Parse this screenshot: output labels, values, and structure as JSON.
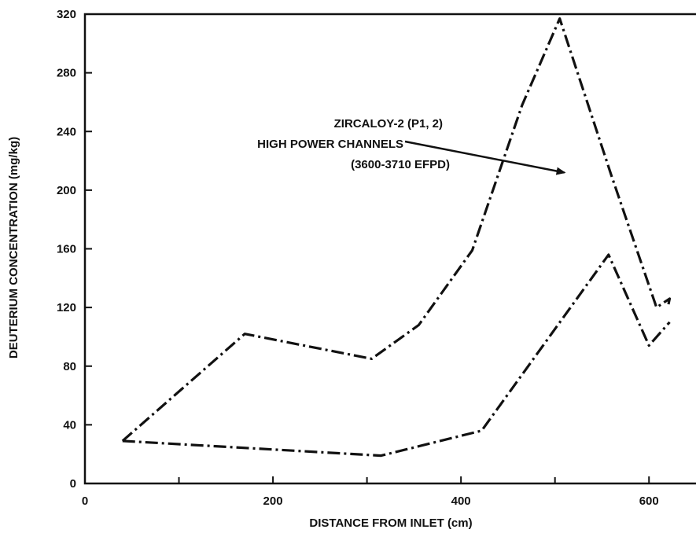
{
  "chart_data": {
    "type": "line",
    "xlabel": "DISTANCE FROM INLET (cm)",
    "ylabel": "DEUTERIUM CONCENTRATION (mg/kg)",
    "xlim": [
      0,
      650
    ],
    "ylim": [
      0,
      320
    ],
    "x_ticks": [
      0,
      200,
      400,
      600
    ],
    "y_ticks": [
      0,
      40,
      80,
      120,
      160,
      200,
      240,
      280,
      320
    ],
    "grid": false,
    "annotation": {
      "lines": [
        "ZIRCALOY-2 (P1, 2)",
        "HIGH POWER CHANNELS",
        "(3600-3710 EFPD)"
      ],
      "arrow_target": {
        "x": 510,
        "y": 212
      }
    },
    "series": [
      {
        "points": [
          {
            "x": 40,
            "y": 29
          },
          {
            "x": 170,
            "y": 102
          },
          {
            "x": 305,
            "y": 85
          },
          {
            "x": 355,
            "y": 108
          },
          {
            "x": 412,
            "y": 159
          },
          {
            "x": 465,
            "y": 258
          },
          {
            "x": 505,
            "y": 317
          },
          {
            "x": 560,
            "y": 210
          },
          {
            "x": 608,
            "y": 120
          },
          {
            "x": 622,
            "y": 126
          },
          {
            "x": 620,
            "y": 120
          }
        ]
      },
      {
        "points": [
          {
            "x": 40,
            "y": 29
          },
          {
            "x": 315,
            "y": 19
          },
          {
            "x": 422,
            "y": 36
          },
          {
            "x": 557,
            "y": 156
          },
          {
            "x": 600,
            "y": 94
          },
          {
            "x": 622,
            "y": 110
          }
        ]
      }
    ]
  }
}
